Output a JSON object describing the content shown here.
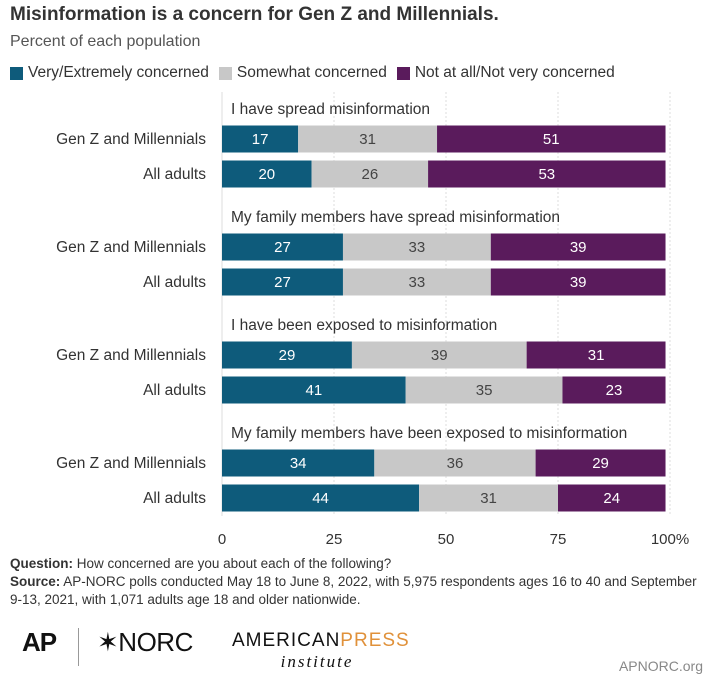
{
  "header": {
    "title": "Misinformation is a concern for Gen Z and Millennials.",
    "subtitle": "Percent of each population"
  },
  "legend": [
    {
      "label": "Very/Extremely concerned",
      "color": "#0e5b7b"
    },
    {
      "label": "Somewhat concerned",
      "color": "#c8c8c8"
    },
    {
      "label": "Not at all/Not very concerned",
      "color": "#5a1b5c"
    }
  ],
  "chart_data": {
    "type": "bar",
    "orientation": "horizontal",
    "stacked": true,
    "xlim": [
      0,
      100
    ],
    "x_ticks": [
      "0",
      "25",
      "50",
      "75",
      "100%"
    ],
    "grid": true,
    "legend_position": "top-left",
    "series_names": [
      "Very/Extremely concerned",
      "Somewhat concerned",
      "Not at all/Not very concerned"
    ],
    "series_colors": [
      "#0e5b7b",
      "#c8c8c8",
      "#5a1b5c"
    ],
    "groups": [
      {
        "label": "I have spread misinformation",
        "rows": [
          {
            "label": "Gen Z and Millennials",
            "values": [
              17,
              31,
              51
            ]
          },
          {
            "label": "All adults",
            "values": [
              20,
              26,
              53
            ]
          }
        ]
      },
      {
        "label": "My family members have spread misinformation",
        "rows": [
          {
            "label": "Gen Z and Millennials",
            "values": [
              27,
              33,
              39
            ]
          },
          {
            "label": "All adults",
            "values": [
              27,
              33,
              39
            ]
          }
        ]
      },
      {
        "label": "I have been exposed to misinformation",
        "rows": [
          {
            "label": "Gen Z and Millennials",
            "values": [
              29,
              39,
              31
            ]
          },
          {
            "label": "All adults",
            "values": [
              41,
              35,
              23
            ]
          }
        ]
      },
      {
        "label": "My family members have been exposed to misinformation",
        "rows": [
          {
            "label": "Gen Z and Millennials",
            "values": [
              34,
              36,
              29
            ]
          },
          {
            "label": "All adults",
            "values": [
              44,
              31,
              24
            ]
          }
        ]
      }
    ]
  },
  "notes": {
    "question_label": "Question:",
    "question_text": "How concerned are you about each of the following?",
    "source_label": "Source:",
    "source_text": "AP-NORC polls conducted May 18 to June 8, 2022, with 5,975 respondents ages 16 to 40 and September 9-13, 2021, with 1,071 adults age 18 and older nationwide."
  },
  "logos": {
    "ap": "AP",
    "norc": "NORC",
    "api_top_a": "AMERICAN",
    "api_top_b": "PRESS",
    "api_bottom": "institute"
  },
  "footer": {
    "site": "APNORC.org"
  }
}
